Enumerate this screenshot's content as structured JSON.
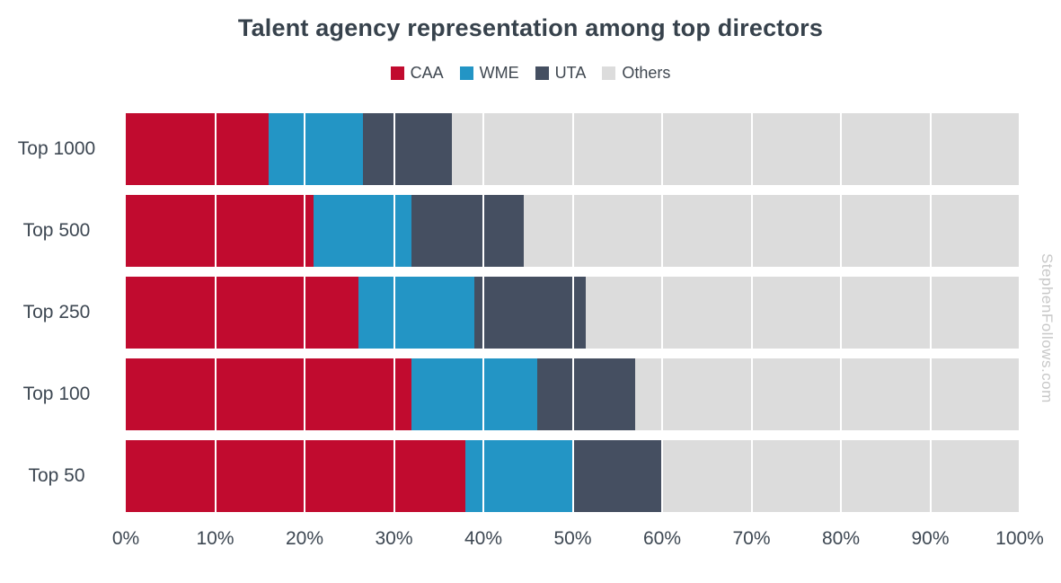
{
  "title": "Talent agency representation among top directors",
  "watermark": "StephenFollows.com",
  "colors": {
    "caa": "#c10b2f",
    "wme": "#2395c5",
    "uta": "#454f61",
    "others": "#dcdcdc",
    "title_text": "#37424c",
    "axis_text": "#3d4752",
    "watermark_text": "#c8c8c8",
    "background": "#ffffff"
  },
  "chart_data": {
    "type": "bar",
    "orientation": "horizontal",
    "stacked": true,
    "title": "Talent agency representation among top directors",
    "categories": [
      "Top 1000",
      "Top 500",
      "Top 250",
      "Top 100",
      "Top 50"
    ],
    "series": [
      {
        "name": "CAA",
        "color": "#c10b2f",
        "values": [
          16,
          21,
          26,
          32,
          38
        ]
      },
      {
        "name": "WME",
        "color": "#2395c5",
        "values": [
          10.5,
          11,
          13,
          14,
          12
        ]
      },
      {
        "name": "UTA",
        "color": "#454f61",
        "values": [
          10,
          12.5,
          12.5,
          11,
          10
        ]
      },
      {
        "name": "Others",
        "color": "#dcdcdc",
        "values": [
          63.5,
          55.5,
          48.5,
          43,
          40
        ]
      }
    ],
    "x_ticks": [
      "0%",
      "10%",
      "20%",
      "30%",
      "40%",
      "50%",
      "60%",
      "70%",
      "80%",
      "90%",
      "100%"
    ],
    "xlim": [
      0,
      100
    ],
    "grid": true,
    "legend_position": "top"
  }
}
